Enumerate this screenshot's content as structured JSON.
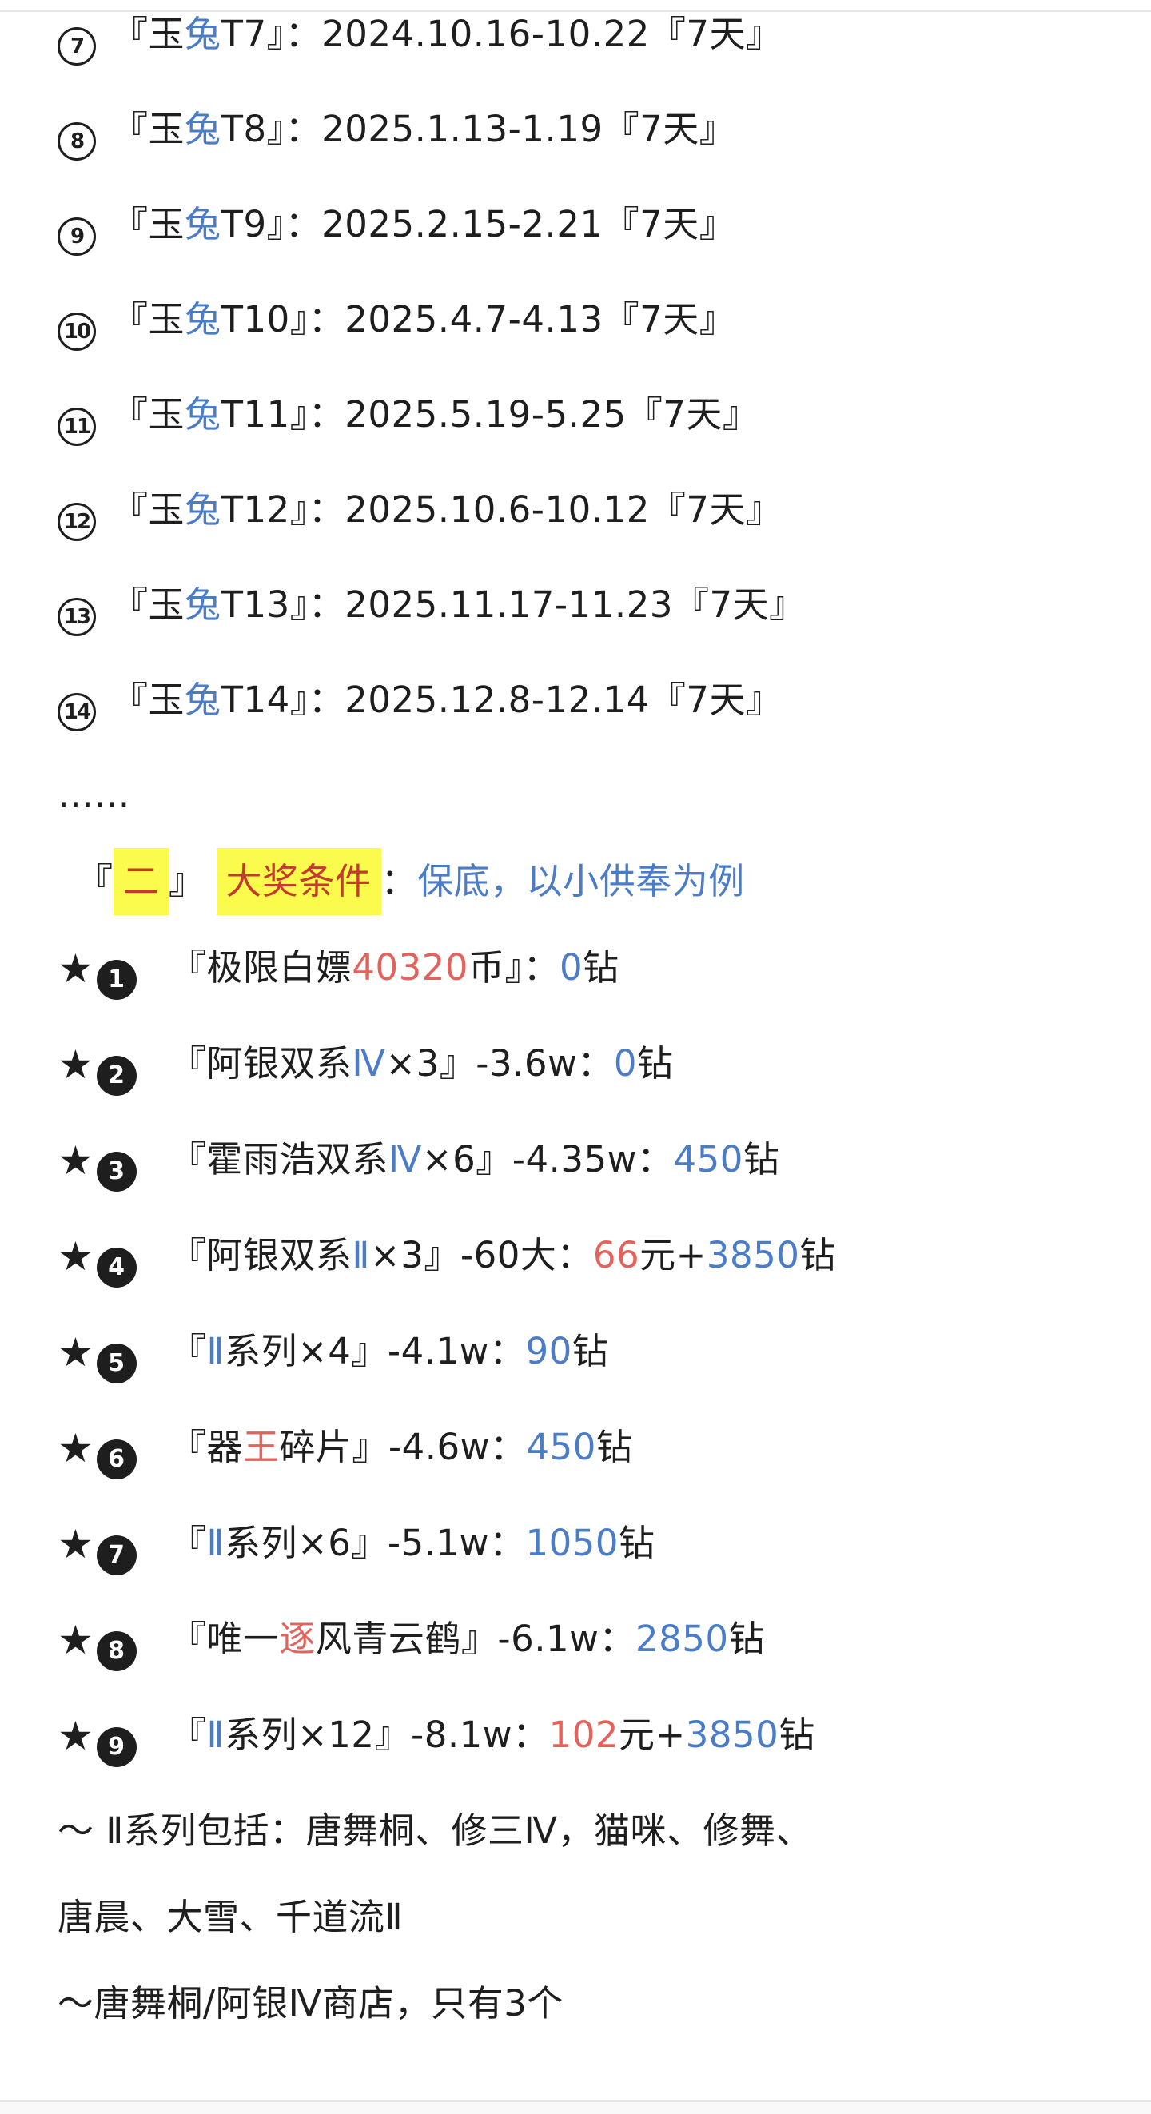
{
  "colors": {
    "text": "#1e1e1e",
    "accent_blue": "#4a7cc8",
    "accent_red": "#e4625c",
    "header_red": "#c53a2f",
    "highlight_yellow": "#fbfb4d",
    "divider_gray": "#e5e5e5"
  },
  "icons": {
    "star": "★"
  },
  "schedule": [
    {
      "num": "7",
      "pre": "『玉",
      "accent": "兔",
      "post": "T7』：",
      "rest": "2024.10.16-10.22『7天』"
    },
    {
      "num": "8",
      "pre": "『玉",
      "accent": "兔",
      "post": "T8』：",
      "rest": "2025.1.13-1.19『7天』"
    },
    {
      "num": "9",
      "pre": "『玉",
      "accent": "兔",
      "post": "T9』：",
      "rest": "2025.2.15-2.21『7天』"
    },
    {
      "num": "10",
      "pre": "『玉",
      "accent": "兔",
      "post": "T10』：",
      "rest": "2025.4.7-4.13『7天』"
    },
    {
      "num": "11",
      "pre": "『玉",
      "accent": "兔",
      "post": "T11』：",
      "rest": "2025.5.19-5.25『7天』"
    },
    {
      "num": "12",
      "pre": "『玉",
      "accent": "兔",
      "post": "T12』：",
      "rest": "2025.10.6-10.12『7天』"
    },
    {
      "num": "13",
      "pre": "『玉",
      "accent": "兔",
      "post": "T13』：",
      "rest": "2025.11.17-11.23『7天』"
    },
    {
      "num": "14",
      "pre": "『玉",
      "accent": "兔",
      "post": "T14』：",
      "rest": "2025.12.8-12.14『7天』"
    }
  ],
  "ellipsis": "……",
  "header": {
    "open": "『",
    "hl1": "二",
    "close": "』",
    "hl2": "大奖条件",
    "colon": "：",
    "tail": "保底，以小供奉为例"
  },
  "prizes": [
    {
      "num": "1",
      "s1": "『极限白嫖",
      "s2": "40320",
      "s2c": "c-red",
      "s3": "币』：",
      "s4": "0",
      "s4c": "c-blue",
      "s5": "钻",
      "s6": "",
      "s6c": "",
      "s7": ""
    },
    {
      "num": "2",
      "s1": "『阿银双系",
      "s2": "Ⅳ",
      "s2c": "c-blue",
      "s3": "×3』-3.6w：",
      "s4": "0",
      "s4c": "c-blue",
      "s5": "钻",
      "s6": "",
      "s6c": "",
      "s7": ""
    },
    {
      "num": "3",
      "s1": "『霍雨浩双系",
      "s2": "Ⅳ",
      "s2c": "c-blue",
      "s3": "×6』-4.35w：",
      "s4": "450",
      "s4c": "c-blue",
      "s5": "钻",
      "s6": "",
      "s6c": "",
      "s7": ""
    },
    {
      "num": "4",
      "s1": "『阿银双系",
      "s2": "Ⅱ",
      "s2c": "c-blue",
      "s3": "×3』-60大：",
      "s4": "66",
      "s4c": "c-red",
      "s5": "元+",
      "s6": "3850",
      "s6c": "c-blue",
      "s7": "钻"
    },
    {
      "num": "5",
      "s1": "『",
      "s2": "Ⅱ",
      "s2c": "c-blue",
      "s3": "系列×4』-4.1w：",
      "s4": "90",
      "s4c": "c-blue",
      "s5": "钻",
      "s6": "",
      "s6c": "",
      "s7": ""
    },
    {
      "num": "6",
      "s1": "『器",
      "s2": "王",
      "s2c": "c-red",
      "s3": "碎片』-4.6w：",
      "s4": "450",
      "s4c": "c-blue",
      "s5": "钻",
      "s6": "",
      "s6c": "",
      "s7": ""
    },
    {
      "num": "7",
      "s1": "『",
      "s2": "Ⅱ",
      "s2c": "c-blue",
      "s3": "系列×6』-5.1w：",
      "s4": "1050",
      "s4c": "c-blue",
      "s5": "钻",
      "s6": "",
      "s6c": "",
      "s7": ""
    },
    {
      "num": "8",
      "s1": "『唯一",
      "s2": "逐",
      "s2c": "c-red",
      "s3": "风青云鹤』-6.1w：",
      "s4": "2850",
      "s4c": "c-blue",
      "s5": "钻",
      "s6": "",
      "s6c": "",
      "s7": ""
    },
    {
      "num": "9",
      "s1": "『",
      "s2": "Ⅱ",
      "s2c": "c-blue",
      "s3": "系列×12』-8.1w：",
      "s4": "102",
      "s4c": "c-red",
      "s5": "元+",
      "s6": "3850",
      "s6c": "c-blue",
      "s7": "钻"
    }
  ],
  "notes": {
    "line1": "～ Ⅱ系列包括：唐舞桐、修三Ⅳ，猫咪、修舞、",
    "line2": "唐晨、大雪、千道流Ⅱ",
    "line3": "～唐舞桐/阿银Ⅳ商店，只有3个"
  }
}
